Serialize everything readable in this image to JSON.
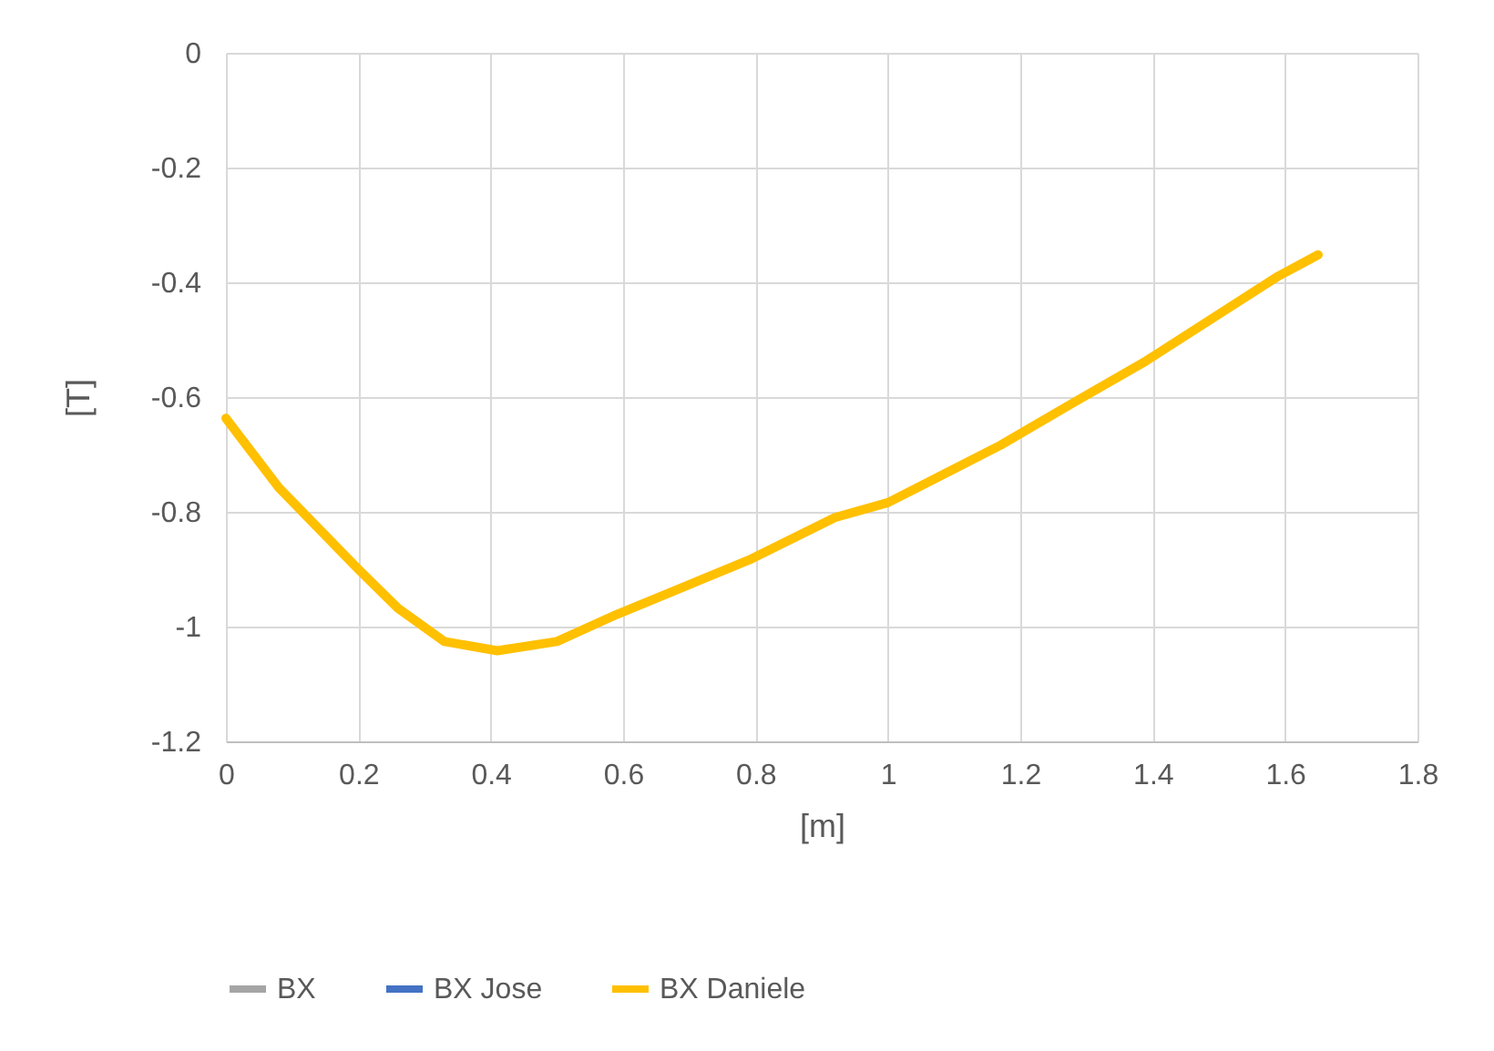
{
  "chart_data": {
    "type": "line",
    "xlabel": "[m]",
    "ylabel": "[T]",
    "x": [
      0,
      0.08,
      0.2,
      0.26,
      0.33,
      0.41,
      0.5,
      0.59,
      0.79,
      0.92,
      1.0,
      1.17,
      1.28,
      1.39,
      1.59,
      1.65
    ],
    "series": [
      {
        "name": "BX",
        "color": "#a5a5a5",
        "values": [
          null,
          null,
          null,
          null,
          null,
          null,
          null,
          null,
          null,
          null,
          null,
          null,
          null,
          null,
          null,
          null
        ]
      },
      {
        "name": "BX Jose",
        "color": "#4472c4",
        "values": [
          null,
          null,
          null,
          null,
          null,
          null,
          null,
          null,
          null,
          null,
          null,
          null,
          null,
          null,
          null,
          null
        ]
      },
      {
        "name": "BX Daniele",
        "color": "#ffc000",
        "values": [
          -0.637,
          -0.758,
          -0.9,
          -0.968,
          -1.026,
          -1.042,
          -1.026,
          -0.979,
          -0.884,
          -0.81,
          -0.784,
          -0.684,
          -0.61,
          -0.537,
          -0.389,
          -0.352
        ]
      }
    ],
    "xlim": [
      0,
      1.8
    ],
    "xticks": [
      0,
      0.2,
      0.4,
      0.6,
      0.8,
      1,
      1.2,
      1.4,
      1.6,
      1.8
    ],
    "ylim": [
      -1.2,
      0
    ],
    "yticks": [
      -1.2,
      -1,
      -0.8,
      -0.6,
      -0.4,
      -0.2,
      0
    ],
    "grid": true,
    "legend": "bottom",
    "marker": "none",
    "line_style": "solid"
  }
}
